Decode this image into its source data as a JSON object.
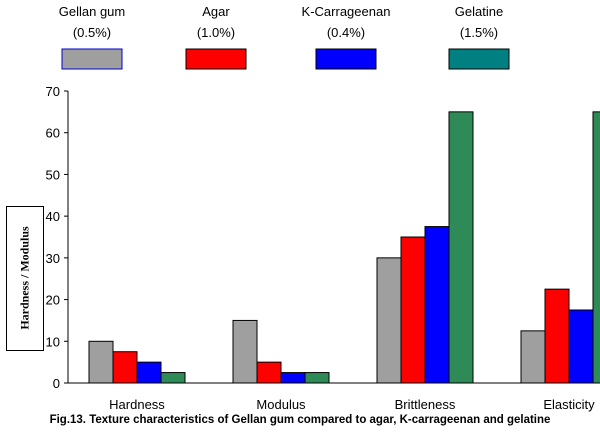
{
  "chart_data": {
    "type": "bar",
    "title": "",
    "xlabel": "",
    "ylabel": "Hardness / Modulus",
    "ylim": [
      0,
      70
    ],
    "yticks": [
      0,
      10,
      20,
      30,
      40,
      50,
      60,
      70
    ],
    "grid": false,
    "legend_position": "top",
    "categories": [
      "Hardness",
      "Modulus",
      "Brittleness",
      "Elasticity"
    ],
    "series": [
      {
        "name": "Gellan gum",
        "concentration": "(0.5%)",
        "color": "#9f9f9f",
        "values": [
          10,
          15,
          30,
          12.5
        ]
      },
      {
        "name": "Agar",
        "concentration": "(1.0%)",
        "color": "#ff0000",
        "values": [
          7.5,
          5,
          35,
          22.5
        ]
      },
      {
        "name": "K-Carrageenan",
        "concentration": "(0.4%)",
        "color": "#0000ff",
        "values": [
          5,
          2.5,
          37.5,
          17.5
        ]
      },
      {
        "name": "Gelatine",
        "concentration": "(1.5%)",
        "color": "#2e8b57",
        "values": [
          2.5,
          2.5,
          65,
          65
        ]
      }
    ],
    "legend_swatch_colors": [
      "#9f9f9f",
      "#ff0000",
      "#0000ff",
      "#008080"
    ],
    "caption": "Fig.13. Texture characteristics of Gellan gum compared to agar, K-carrageenan and gelatine"
  }
}
